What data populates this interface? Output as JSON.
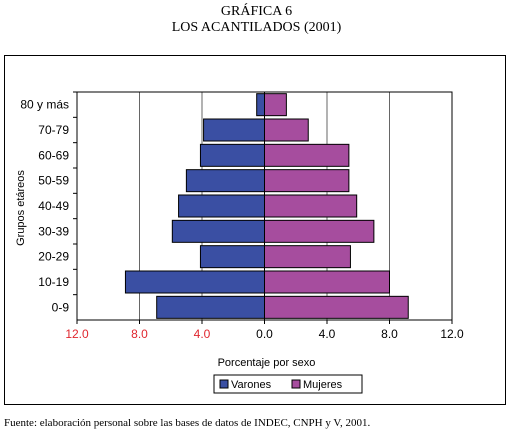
{
  "header": {
    "title": "GRÁFICA 6",
    "subtitle": "LOS ACANTILADOS (2001)"
  },
  "footer": {
    "source": "Fuente: elaboración personal sobre las bases de datos de INDEC, CNPH y V, 2001."
  },
  "chart_data": {
    "type": "bar",
    "orientation": "horizontal-population-pyramid",
    "categories": [
      "80 y más",
      "70-79",
      "60-69",
      "50-59",
      "40-49",
      "30-39",
      "20-29",
      "10-19",
      "0-9"
    ],
    "series": [
      {
        "name": "Varones",
        "values": [
          0.5,
          3.9,
          4.1,
          5.0,
          5.5,
          5.9,
          4.1,
          8.9,
          6.9
        ],
        "color": "#3a4fa3"
      },
      {
        "name": "Mujeres",
        "values": [
          1.4,
          2.8,
          5.4,
          5.4,
          5.9,
          7.0,
          5.5,
          8.0,
          9.2
        ],
        "color": "#a64d9e"
      }
    ],
    "xlabel": "Porcentaje por sexo",
    "ylabel": "Grupos etáreos",
    "xlim": [
      -12,
      12
    ],
    "xticks": [
      {
        "value": -12,
        "label": "12.0",
        "color": "#e0262e"
      },
      {
        "value": -8,
        "label": "8.0",
        "color": "#e0262e"
      },
      {
        "value": -4,
        "label": "4.0",
        "color": "#e0262e"
      },
      {
        "value": 0,
        "label": "0.0",
        "color": "#000000"
      },
      {
        "value": 4,
        "label": "4.0",
        "color": "#000000"
      },
      {
        "value": 8,
        "label": "8.0",
        "color": "#000000"
      },
      {
        "value": 12,
        "label": "12.0",
        "color": "#000000"
      }
    ],
    "grid": true,
    "legend": "bottom"
  }
}
